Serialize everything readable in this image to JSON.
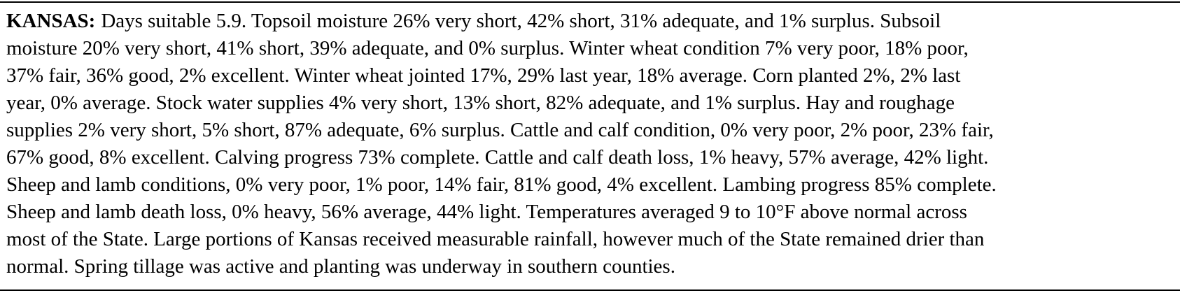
{
  "heading": "KANSAS:",
  "lines": [
    "Days suitable 5.9. Topsoil moisture 26% very short, 42% short, 31% adequate, and 1% surplus. Subsoil",
    "moisture 20% very short, 41% short, 39% adequate, and 0% surplus. Winter wheat condition 7% very poor, 18% poor,",
    "37% fair, 36% good, 2% excellent. Winter wheat jointed 17%, 29% last year, 18% average. Corn planted 2%, 2% last",
    "year, 0% average. Stock water supplies 4% very short, 13% short, 82% adequate, and 1% surplus. Hay and roughage",
    "supplies 2% very short, 5% short, 87% adequate, 6% surplus. Cattle and calf condition, 0% very poor, 2% poor, 23% fair,",
    "67% good, 8% excellent. Calving progress 73% complete. Cattle and calf death loss, 1% heavy, 57% average, 42% light.",
    "Sheep and lamb conditions, 0% very poor, 1% poor, 14% fair, 81% good, 4% excellent. Lambing progress 85% complete.",
    "Sheep and lamb death loss, 0% heavy, 56% average, 44% light. Temperatures averaged 9 to 10°F above normal across",
    "most of the State. Large portions of Kansas received measurable rainfall, however much of the State remained drier than",
    "normal. Spring tillage was active and planting was underway in southern counties."
  ]
}
